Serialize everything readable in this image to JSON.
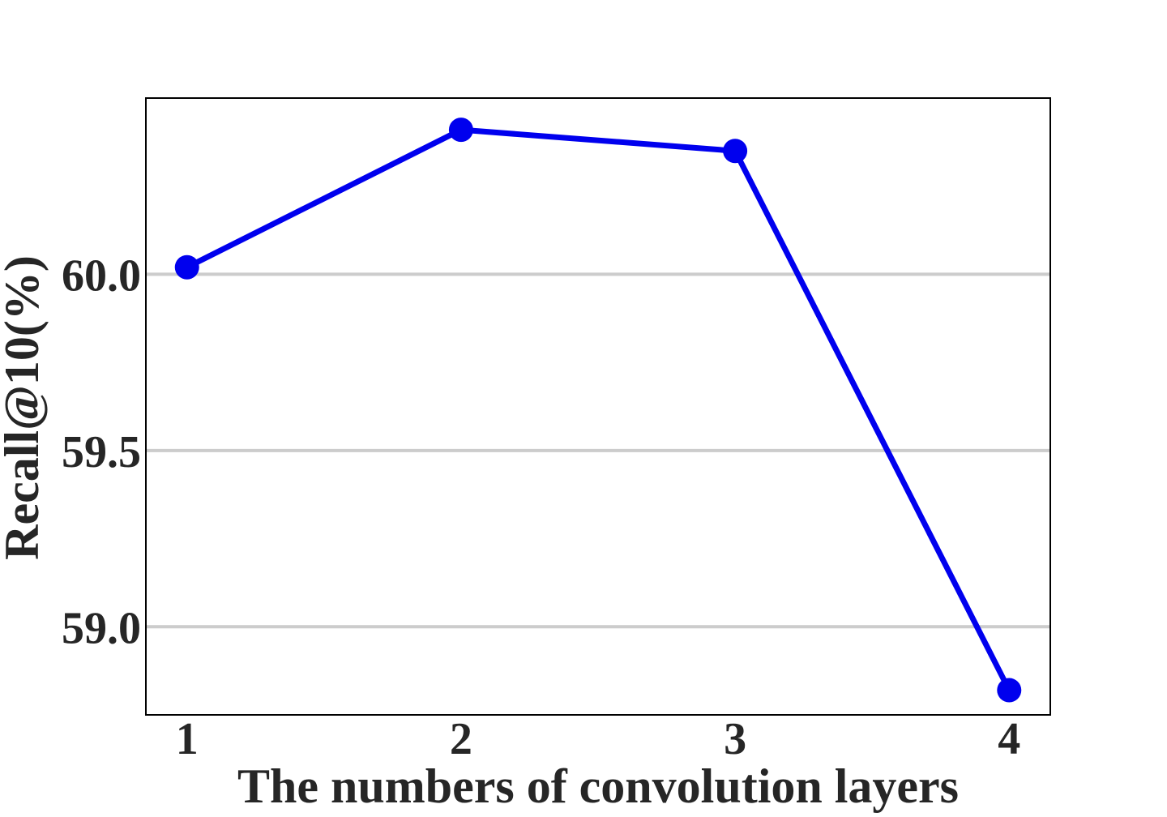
{
  "chart_data": {
    "type": "line",
    "title": "",
    "xlabel": "The numbers of convolution layers",
    "ylabel": "Recall@10(%)",
    "x": [
      1,
      2,
      3,
      4
    ],
    "x_tick_labels": [
      "1",
      "2",
      "3",
      "4"
    ],
    "y_ticks": [
      59.0,
      59.5,
      60.0
    ],
    "y_tick_labels": [
      "59.0",
      "59.5",
      "60.0"
    ],
    "xlim": [
      0.85,
      4.15
    ],
    "ylim": [
      58.75,
      60.5
    ],
    "grid": "horizontal",
    "series": [
      {
        "values": [
          60.02,
          60.41,
          60.35,
          58.82
        ],
        "color": "#0000ee",
        "marker": "circle"
      }
    ]
  }
}
